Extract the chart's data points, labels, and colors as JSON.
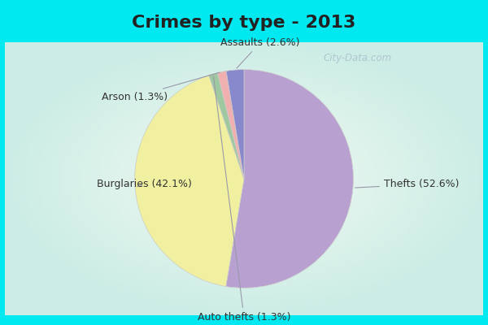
{
  "title": "Crimes by type - 2013",
  "slices": [
    {
      "label": "Thefts",
      "pct": 52.6,
      "color": "#b8a0d0"
    },
    {
      "label": "Burglaries",
      "pct": 42.1,
      "color": "#f0f0a0"
    },
    {
      "label": "Auto thefts",
      "pct": 1.3,
      "color": "#a0c8a0"
    },
    {
      "label": "Arson",
      "pct": 1.3,
      "color": "#f0b0b0"
    },
    {
      "label": "Assaults",
      "pct": 2.6,
      "color": "#8888cc"
    }
  ],
  "bg_cyan": "#00e8f0",
  "bg_inner": "#d0ebe0",
  "title_fontsize": 16,
  "label_fontsize": 9,
  "watermark": "City-Data.com",
  "border_width": 8
}
